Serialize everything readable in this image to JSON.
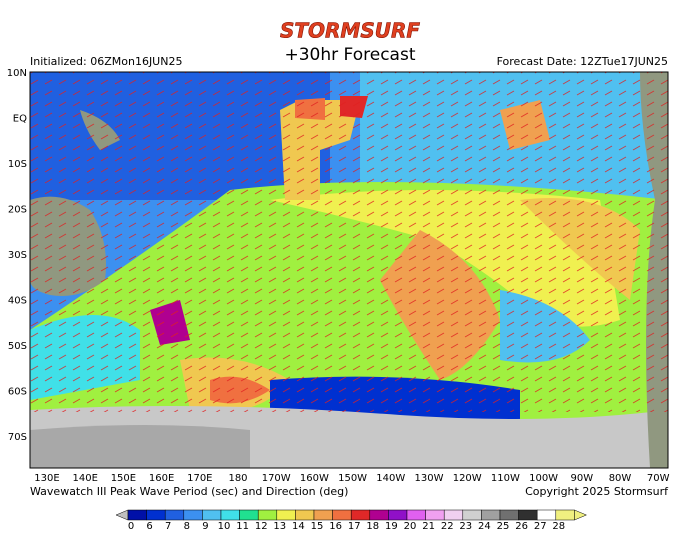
{
  "header": {
    "logo": "STORMSURF",
    "title": "+30hr Forecast",
    "initialized": "Initialized: 06ZMon16JUN25",
    "forecast_date": "Forecast Date: 12ZTue17JUN25"
  },
  "map": {
    "lat_labels": [
      "10N",
      "EQ",
      "10S",
      "20S",
      "30S",
      "40S",
      "50S",
      "60S",
      "70S"
    ],
    "lon_labels": [
      "130E",
      "140E",
      "150E",
      "160E",
      "170E",
      "180",
      "170W",
      "160W",
      "150W",
      "140W",
      "130W",
      "120W",
      "110W",
      "100W",
      "90W",
      "80W",
      "70W"
    ]
  },
  "footer": {
    "description": "Wavewatch III Peak Wave Period (sec) and Direction (deg)",
    "copyright": "Copyright 2025 Stormsurf"
  },
  "colorbar": {
    "labels": [
      "0",
      "6",
      "7",
      "8",
      "9",
      "10",
      "11",
      "12",
      "13",
      "14",
      "15",
      "16",
      "17",
      "18",
      "19",
      "20",
      "21",
      "22",
      "23",
      "24",
      "25",
      "26",
      "27",
      "28"
    ],
    "colors": [
      "#0010a8",
      "#0030d0",
      "#2060e0",
      "#3c90f0",
      "#50c0f0",
      "#40e0e8",
      "#20e090",
      "#a0f040",
      "#f0f050",
      "#f0c850",
      "#f0a050",
      "#f07040",
      "#e02828",
      "#b00090",
      "#9010c8",
      "#e060f0",
      "#f0a0f0",
      "#f0d0f0",
      "#d0d0d0",
      "#a0a0a0",
      "#707070",
      "#303030",
      "#ffffff",
      "#f0f080"
    ]
  }
}
